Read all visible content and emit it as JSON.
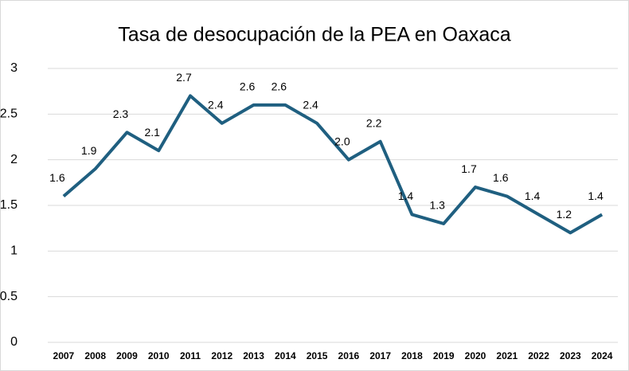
{
  "chart_data": {
    "type": "line",
    "title": "Tasa de desocupación de la PEA en Oaxaca",
    "categories": [
      "2007",
      "2008",
      "2009",
      "2010",
      "2011",
      "2012",
      "2013",
      "2014",
      "2015",
      "2016",
      "2017",
      "2018",
      "2019",
      "2020",
      "2021",
      "2022",
      "2023",
      "2024"
    ],
    "series": [
      {
        "name": "Tasa de desocupación",
        "color": "#1f5f80",
        "values": [
          1.6,
          1.9,
          2.3,
          2.1,
          2.7,
          2.4,
          2.6,
          2.6,
          2.4,
          2.0,
          2.2,
          1.4,
          1.3,
          1.7,
          1.6,
          1.4,
          1.2,
          1.4
        ],
        "value_labels": [
          "1.6",
          "1.9",
          "2.3",
          "2.1",
          "2.7",
          "2.4",
          "2.6",
          "2.6",
          "2.4",
          "2.0",
          "2.2",
          "1.4",
          "1.3",
          "1.7",
          "1.6",
          "1.4",
          "1.2",
          "1.4"
        ]
      }
    ],
    "ylim": [
      0,
      3
    ],
    "yticks": [
      0,
      0.5,
      1,
      1.5,
      2,
      2.5,
      3
    ],
    "grid": true
  }
}
